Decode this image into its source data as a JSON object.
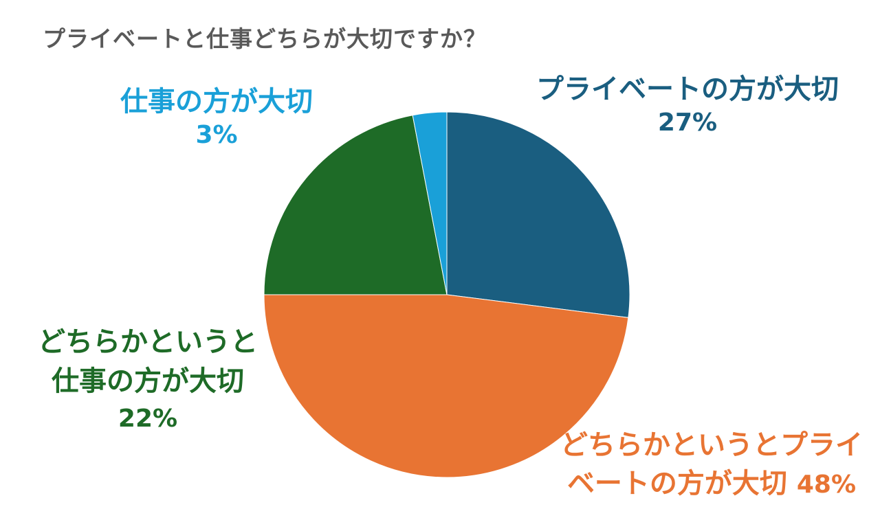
{
  "chart_data": {
    "type": "pie",
    "title": "プライベートと仕事どちらが大切ですか？",
    "start_angle_deg": 0,
    "direction": "clockwise",
    "slices": [
      {
        "key": "private",
        "label_lines": [
          "プライベートの方が大切"
        ],
        "percent_text": "27%",
        "value": 27,
        "color": "#1a5e80"
      },
      {
        "key": "somewhat_private",
        "label_lines": [
          "どちらかというとプライ",
          "ベートの方が大切"
        ],
        "percent_text": "48%",
        "value": 48,
        "color": "#e87433"
      },
      {
        "key": "somewhat_work",
        "label_lines": [
          "どちらかというと",
          "仕事の方が大切"
        ],
        "percent_text": "22%",
        "value": 22,
        "color": "#1e6b27"
      },
      {
        "key": "work",
        "label_lines": [
          "仕事の方が大切"
        ],
        "percent_text": "3%",
        "value": 3,
        "color": "#1aa0d8"
      }
    ]
  }
}
